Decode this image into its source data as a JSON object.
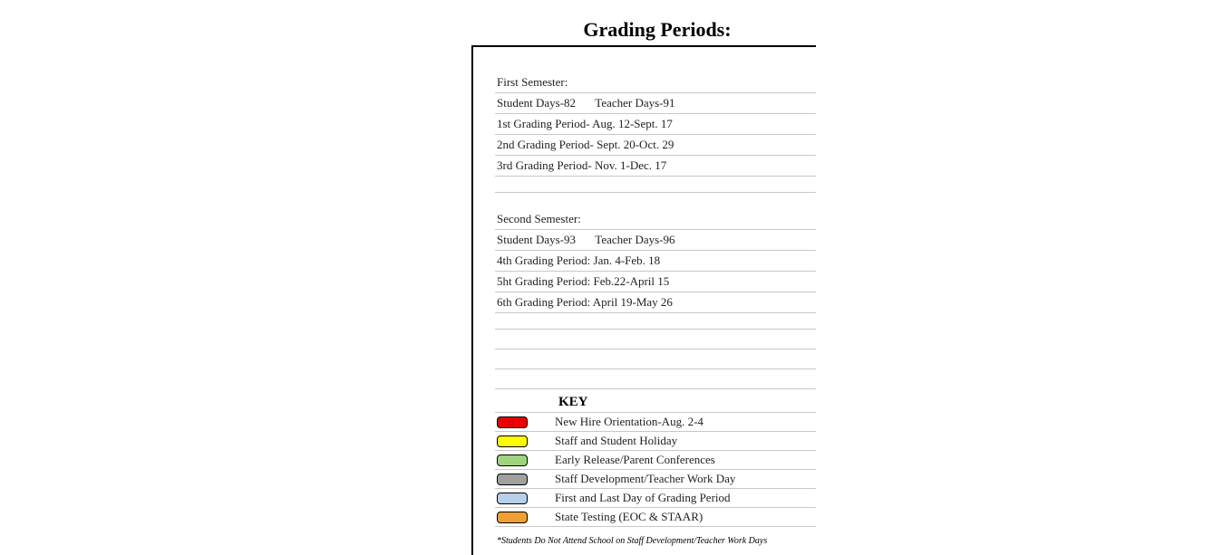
{
  "title": "Grading Periods:",
  "sem1": {
    "header": "First Semester:",
    "student_days": "Student Days-82",
    "teacher_days": "Teacher Days-91",
    "p1": "1st Grading Period- Aug. 12-Sept. 17",
    "p2": "2nd Grading Period- Sept. 20-Oct. 29",
    "p3": "3rd Grading Period- Nov. 1-Dec. 17"
  },
  "sem2": {
    "header": "Second Semester:",
    "student_days": "Student Days-93",
    "teacher_days": "Teacher Days-96",
    "p4": "4th Grading Period: Jan. 4-Feb. 18",
    "p5": "5ht Grading Period: Feb.22-April 15",
    "p6": "6th Grading Period: April 19-May 26"
  },
  "key": {
    "header": "KEY",
    "items": [
      {
        "color": "#e80000",
        "label": "New Hire Orientation-Aug. 2-4"
      },
      {
        "color": "#fdfd00",
        "label": "Staff and Student Holiday"
      },
      {
        "color": "#9ed47b",
        "label": "Early Release/Parent Conferences"
      },
      {
        "color": "#a0a0a0",
        "label": "Staff Development/Teacher Work Day"
      },
      {
        "color": "#b7cfe8",
        "label": "First and Last Day of Grading Period"
      },
      {
        "color": "#f0a030",
        "label": "State Testing (EOC & STAAR)"
      }
    ]
  },
  "footnote": "*Students Do Not Attend  School on Staff Development/Teacher Work Days"
}
